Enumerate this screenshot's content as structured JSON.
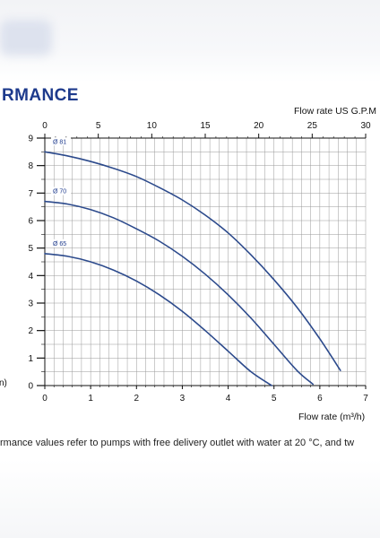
{
  "page": {
    "title": "RMANCE",
    "caption": "rmance values refer to pumps with free delivery outlet with water at 20 °C, and tw",
    "left_cut_label": "n)"
  },
  "colors": {
    "title": "#1d3a8c",
    "curve": "#2c4a8c",
    "grid": "#9a9a9a",
    "axis": "#111111"
  },
  "chart_data": {
    "type": "line",
    "title": "",
    "xlabel": "Flow rate  (m³/h)",
    "x2label": "Flow rate US  G.P.M",
    "ylabel": "",
    "xlim": [
      0,
      7
    ],
    "ylim": [
      0,
      9
    ],
    "x2lim": [
      0,
      30
    ],
    "xticks": [
      "0",
      "1",
      "2",
      "3",
      "4",
      "5",
      "6",
      "7"
    ],
    "x2ticks": [
      "0",
      "5",
      "10",
      "15",
      "20",
      "25",
      "30"
    ],
    "yticks": [
      "0",
      "1",
      "2",
      "3",
      "4",
      "5",
      "6",
      "7",
      "8",
      "9"
    ],
    "grid": true,
    "series": [
      {
        "name": "Ø 81",
        "x": [
          0,
          0.5,
          1,
          1.5,
          2,
          2.5,
          3,
          3.5,
          4,
          4.5,
          5,
          5.5,
          6,
          6.45
        ],
        "y": [
          8.5,
          8.35,
          8.15,
          7.9,
          7.6,
          7.2,
          6.75,
          6.2,
          5.55,
          4.75,
          3.85,
          2.85,
          1.7,
          0.55
        ]
      },
      {
        "name": "Ø 70",
        "x": [
          0,
          0.5,
          1,
          1.5,
          2,
          2.5,
          3,
          3.5,
          4,
          4.5,
          5,
          5.5,
          5.85
        ],
        "y": [
          6.7,
          6.6,
          6.4,
          6.1,
          5.7,
          5.25,
          4.7,
          4.05,
          3.3,
          2.45,
          1.5,
          0.55,
          0.05
        ]
      },
      {
        "name": "Ø 65",
        "x": [
          0,
          0.5,
          1,
          1.5,
          2,
          2.5,
          3,
          3.5,
          4,
          4.5,
          4.95
        ],
        "y": [
          4.8,
          4.7,
          4.5,
          4.2,
          3.8,
          3.3,
          2.7,
          2.0,
          1.25,
          0.5,
          0.0
        ]
      }
    ]
  }
}
